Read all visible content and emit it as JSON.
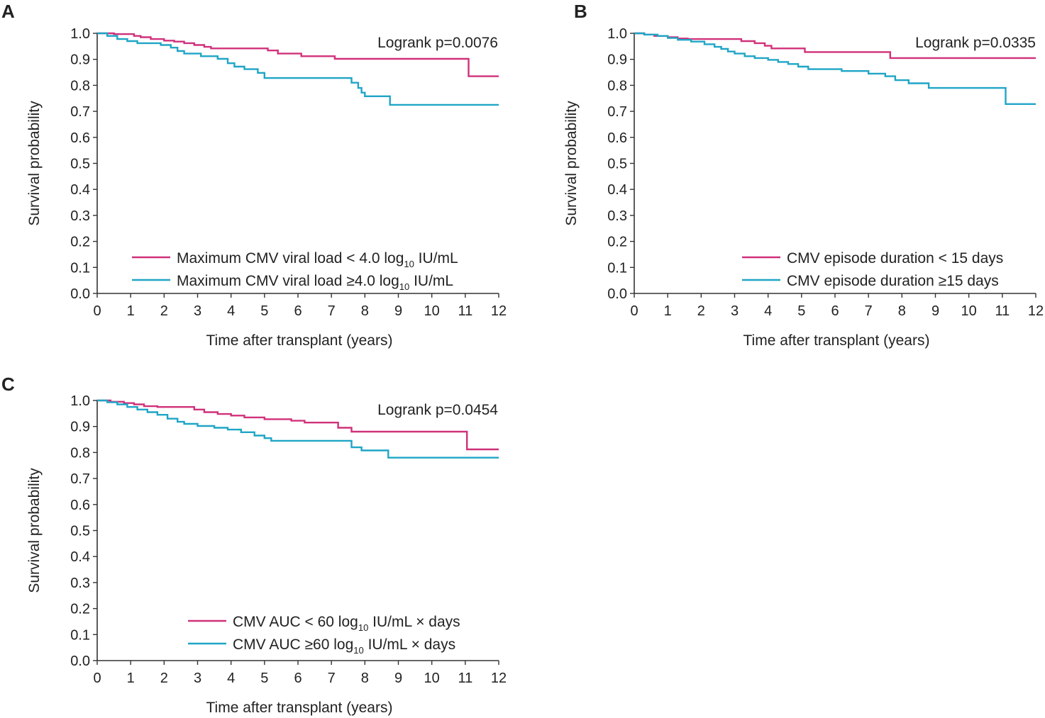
{
  "chart_data": [
    {
      "panel": "A",
      "type": "line",
      "title": "",
      "xlabel": "Time after transplant (years)",
      "ylabel": "Survival probability",
      "xlim": [
        0,
        12
      ],
      "ylim": [
        0,
        1
      ],
      "xticks": [
        "0",
        "1",
        "2",
        "3",
        "4",
        "5",
        "6",
        "7",
        "8",
        "9",
        "10",
        "11",
        "12"
      ],
      "yticks": [
        "0.0",
        "0.1",
        "0.2",
        "0.3",
        "0.4",
        "0.5",
        "0.6",
        "0.7",
        "0.8",
        "0.9",
        "1.0"
      ],
      "annotation": "Logrank p=0.0076",
      "legend_position": "bottom-right",
      "series": [
        {
          "name": "Maximum CMV viral load",
          "legend_parts": [
            "Maximum CMV viral load ",
            "< 4.0 log",
            "10",
            " IU/mL"
          ],
          "color": "#d0317a",
          "steps": [
            [
              0,
              1.0
            ],
            [
              0.5,
              0.997
            ],
            [
              1.1,
              0.99
            ],
            [
              1.3,
              0.985
            ],
            [
              1.6,
              0.978
            ],
            [
              2.0,
              0.972
            ],
            [
              2.3,
              0.968
            ],
            [
              2.6,
              0.962
            ],
            [
              2.9,
              0.955
            ],
            [
              3.2,
              0.948
            ],
            [
              3.4,
              0.942
            ],
            [
              5.1,
              0.934
            ],
            [
              5.4,
              0.922
            ],
            [
              6.1,
              0.912
            ],
            [
              7.1,
              0.902
            ],
            [
              11.05,
              0.902
            ],
            [
              11.1,
              0.835
            ],
            [
              12,
              0.835
            ]
          ]
        },
        {
          "name": "Maximum CMV viral load",
          "legend_parts": [
            "Maximum CMV viral load ",
            "≥4.0 log",
            "10",
            " IU/mL"
          ],
          "color": "#1fa5c6",
          "steps": [
            [
              0,
              1.0
            ],
            [
              0.3,
              0.99
            ],
            [
              0.6,
              0.978
            ],
            [
              0.9,
              0.97
            ],
            [
              1.2,
              0.962
            ],
            [
              1.9,
              0.955
            ],
            [
              2.2,
              0.945
            ],
            [
              2.4,
              0.932
            ],
            [
              2.6,
              0.922
            ],
            [
              3.1,
              0.912
            ],
            [
              3.6,
              0.902
            ],
            [
              3.9,
              0.885
            ],
            [
              4.1,
              0.872
            ],
            [
              4.4,
              0.862
            ],
            [
              4.8,
              0.848
            ],
            [
              5.0,
              0.84
            ],
            [
              5.0,
              0.828
            ],
            [
              7.5,
              0.828
            ],
            [
              7.6,
              0.81
            ],
            [
              7.8,
              0.79
            ],
            [
              7.9,
              0.772
            ],
            [
              8.0,
              0.758
            ],
            [
              8.7,
              0.758
            ],
            [
              8.75,
              0.725
            ],
            [
              12,
              0.725
            ]
          ]
        }
      ]
    },
    {
      "panel": "B",
      "type": "line",
      "title": "",
      "xlabel": "Time after transplant (years)",
      "ylabel": "Survival probability",
      "xlim": [
        0,
        12
      ],
      "ylim": [
        0,
        1
      ],
      "xticks": [
        "0",
        "1",
        "2",
        "3",
        "4",
        "5",
        "6",
        "7",
        "8",
        "9",
        "10",
        "11",
        "12"
      ],
      "yticks": [
        "0.0",
        "0.1",
        "0.2",
        "0.3",
        "0.4",
        "0.5",
        "0.6",
        "0.7",
        "0.8",
        "0.9",
        "1.0"
      ],
      "annotation": "Logrank p=0.0335",
      "legend_position": "bottom-right",
      "series": [
        {
          "name": "CMV episode duration",
          "legend_parts": [
            "CMV episode duration ",
            "< 15 days",
            "",
            ""
          ],
          "color": "#d0317a",
          "steps": [
            [
              0,
              1.0
            ],
            [
              0.3,
              0.995
            ],
            [
              0.6,
              0.99
            ],
            [
              1.0,
              0.985
            ],
            [
              1.3,
              0.98
            ],
            [
              1.6,
              0.978
            ],
            [
              3.2,
              0.97
            ],
            [
              3.6,
              0.962
            ],
            [
              3.9,
              0.952
            ],
            [
              4.1,
              0.942
            ],
            [
              5.1,
              0.928
            ],
            [
              7.6,
              0.928
            ],
            [
              7.65,
              0.905
            ],
            [
              12,
              0.905
            ]
          ]
        },
        {
          "name": "CMV episode duration",
          "legend_parts": [
            "CMV episode duration ",
            "≥15 days",
            "",
            ""
          ],
          "color": "#1fa5c6",
          "steps": [
            [
              0,
              1.0
            ],
            [
              0.3,
              0.995
            ],
            [
              0.7,
              0.99
            ],
            [
              1.0,
              0.982
            ],
            [
              1.3,
              0.975
            ],
            [
              1.7,
              0.968
            ],
            [
              2.1,
              0.958
            ],
            [
              2.4,
              0.948
            ],
            [
              2.6,
              0.94
            ],
            [
              2.8,
              0.93
            ],
            [
              3.0,
              0.922
            ],
            [
              3.3,
              0.912
            ],
            [
              3.6,
              0.905
            ],
            [
              4.0,
              0.898
            ],
            [
              4.3,
              0.89
            ],
            [
              4.6,
              0.882
            ],
            [
              4.9,
              0.872
            ],
            [
              5.2,
              0.862
            ],
            [
              6.2,
              0.855
            ],
            [
              7.0,
              0.845
            ],
            [
              7.5,
              0.835
            ],
            [
              7.8,
              0.82
            ],
            [
              8.2,
              0.808
            ],
            [
              8.8,
              0.79
            ],
            [
              11.05,
              0.79
            ],
            [
              11.1,
              0.728
            ],
            [
              12,
              0.728
            ]
          ]
        }
      ]
    },
    {
      "panel": "C",
      "type": "line",
      "title": "",
      "xlabel": "Time after transplant (years)",
      "ylabel": "Survival probability",
      "xlim": [
        0,
        12
      ],
      "ylim": [
        0,
        1
      ],
      "xticks": [
        "0",
        "1",
        "2",
        "3",
        "4",
        "5",
        "6",
        "7",
        "8",
        "9",
        "10",
        "11",
        "12"
      ],
      "yticks": [
        "0.0",
        "0.1",
        "0.2",
        "0.3",
        "0.4",
        "0.5",
        "0.6",
        "0.7",
        "0.8",
        "0.9",
        "1.0"
      ],
      "annotation": "Logrank p=0.0454",
      "legend_position": "bottom-right",
      "series": [
        {
          "name": "CMV AUC",
          "legend_parts": [
            "CMV AUC ",
            "< 60 log",
            "10",
            " IU/mL × days"
          ],
          "color": "#d0317a",
          "steps": [
            [
              0,
              1.0
            ],
            [
              0.4,
              0.995
            ],
            [
              0.8,
              0.99
            ],
            [
              1.1,
              0.985
            ],
            [
              1.4,
              0.978
            ],
            [
              1.8,
              0.975
            ],
            [
              2.9,
              0.965
            ],
            [
              3.2,
              0.955
            ],
            [
              3.6,
              0.948
            ],
            [
              4.0,
              0.942
            ],
            [
              4.4,
              0.935
            ],
            [
              5.0,
              0.928
            ],
            [
              5.8,
              0.922
            ],
            [
              6.2,
              0.915
            ],
            [
              7.2,
              0.895
            ],
            [
              7.6,
              0.88
            ],
            [
              11.0,
              0.88
            ],
            [
              11.05,
              0.812
            ],
            [
              12,
              0.812
            ]
          ]
        },
        {
          "name": "CMV AUC",
          "legend_parts": [
            "CMV AUC ",
            "≥60 log",
            "10",
            " IU/mL × days"
          ],
          "color": "#1fa5c6",
          "steps": [
            [
              0,
              1.0
            ],
            [
              0.3,
              0.993
            ],
            [
              0.6,
              0.985
            ],
            [
              0.9,
              0.975
            ],
            [
              1.2,
              0.965
            ],
            [
              1.5,
              0.955
            ],
            [
              1.8,
              0.945
            ],
            [
              2.1,
              0.93
            ],
            [
              2.4,
              0.918
            ],
            [
              2.6,
              0.91
            ],
            [
              3.0,
              0.902
            ],
            [
              3.5,
              0.895
            ],
            [
              3.9,
              0.888
            ],
            [
              4.3,
              0.878
            ],
            [
              4.7,
              0.865
            ],
            [
              5.0,
              0.855
            ],
            [
              5.2,
              0.845
            ],
            [
              7.6,
              0.82
            ],
            [
              7.9,
              0.808
            ],
            [
              8.7,
              0.78
            ],
            [
              12,
              0.78
            ]
          ]
        }
      ]
    }
  ]
}
